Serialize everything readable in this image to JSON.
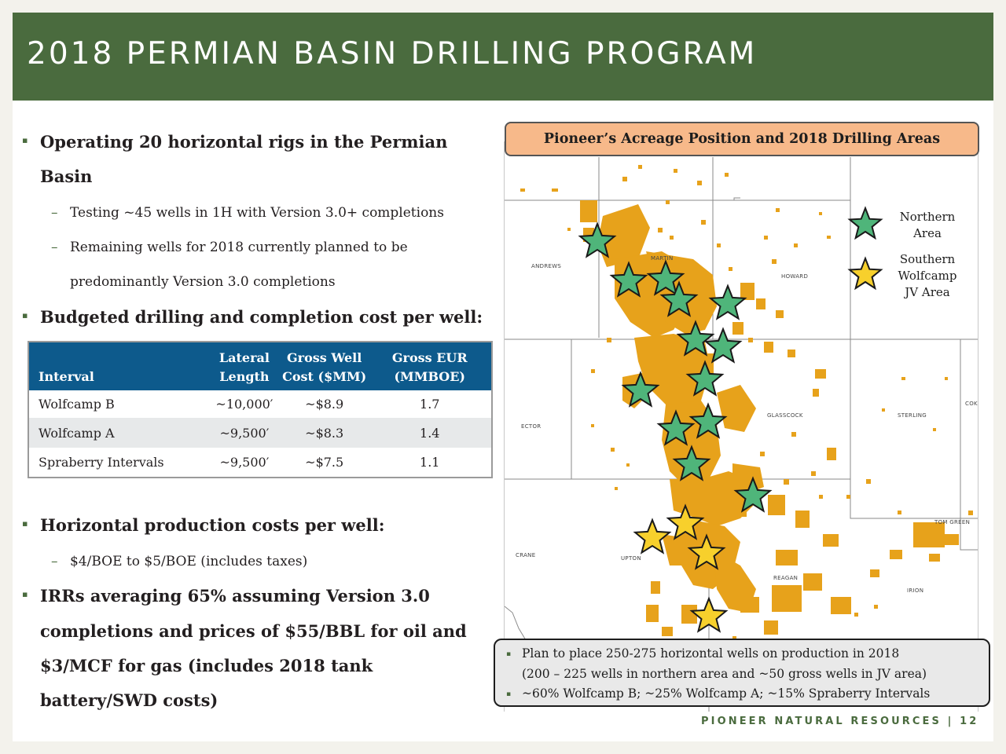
{
  "slide": {
    "title": "2018 PERMIAN BASIN DRILLING PROGRAM",
    "footer": "PIONEER NATURAL RESOURCES  |  12"
  },
  "left": {
    "bullet_mark": "▪",
    "sub_mark": "–",
    "bullet1_line1": "Operating 20 horizontal rigs in the Permian",
    "bullet1_line2": "Basin",
    "sub1": "Testing ~45 wells in 1H with Version 3.0+ completions",
    "sub2_line1": "Remaining wells for 2018 currently planned to be",
    "sub2_line2": "predominantly Version 3.0 completions",
    "bullet2": "Budgeted drilling and completion cost per well:",
    "bullet3": "Horizontal production costs per well:",
    "sub3": "$4/BOE to $5/BOE (includes taxes)",
    "bullet4_line1": "IRRs averaging 65% assuming Version 3.0",
    "bullet4_line2": "completions and prices of $55/BBL for oil and",
    "bullet4_line3": "$3/MCF for gas (includes 2018 tank",
    "bullet4_line4": "battery/SWD costs)"
  },
  "table": {
    "headers": {
      "interval": "Interval",
      "lateral_1": "Lateral",
      "lateral_2": "Length",
      "cost_1": "Gross Well",
      "cost_2": "Cost ($MM)",
      "eur_1": "Gross EUR",
      "eur_2": "(MMBOE)"
    },
    "rows": [
      {
        "interval": "Wolfcamp B",
        "lateral": "~10,000′",
        "cost": "~$8.9",
        "eur": "1.7"
      },
      {
        "interval": "Wolfcamp A",
        "lateral": "~9,500′",
        "cost": "~$8.3",
        "eur": "1.4"
      },
      {
        "interval": "Spraberry Intervals",
        "lateral": "~9,500′",
        "cost": "~$7.5",
        "eur": "1.1"
      }
    ]
  },
  "map": {
    "heading": "Pioneer’s Acreage Position and 2018 Drilling Areas",
    "colors": {
      "acreage": "#e7a21b",
      "northern_star": "#4fb57a",
      "jv_star": "#f7d02c"
    },
    "counties": [
      "ANDREWS",
      "MARTIN",
      "HOWARD",
      "ECTOR",
      "GLASSCOCK",
      "STERLING",
      "COKE",
      "CRANE",
      "UPTON",
      "REAGAN",
      "IRION",
      "TOM GREEN"
    ],
    "legend": {
      "northern_line1": "Northern",
      "northern_line2": "Area",
      "jv_line1": "Southern",
      "jv_line2": "Wolfcamp",
      "jv_line3": "JV Area"
    }
  },
  "notes": {
    "mark": "▪",
    "line1": "Plan to place 250-275 horizontal wells on production in 2018",
    "line2": "(200 – 225 wells in northern area and ~50 gross wells in JV area)",
    "line3": "~60% Wolfcamp B; ~25% Wolfcamp A; ~15% Spraberry Intervals"
  }
}
